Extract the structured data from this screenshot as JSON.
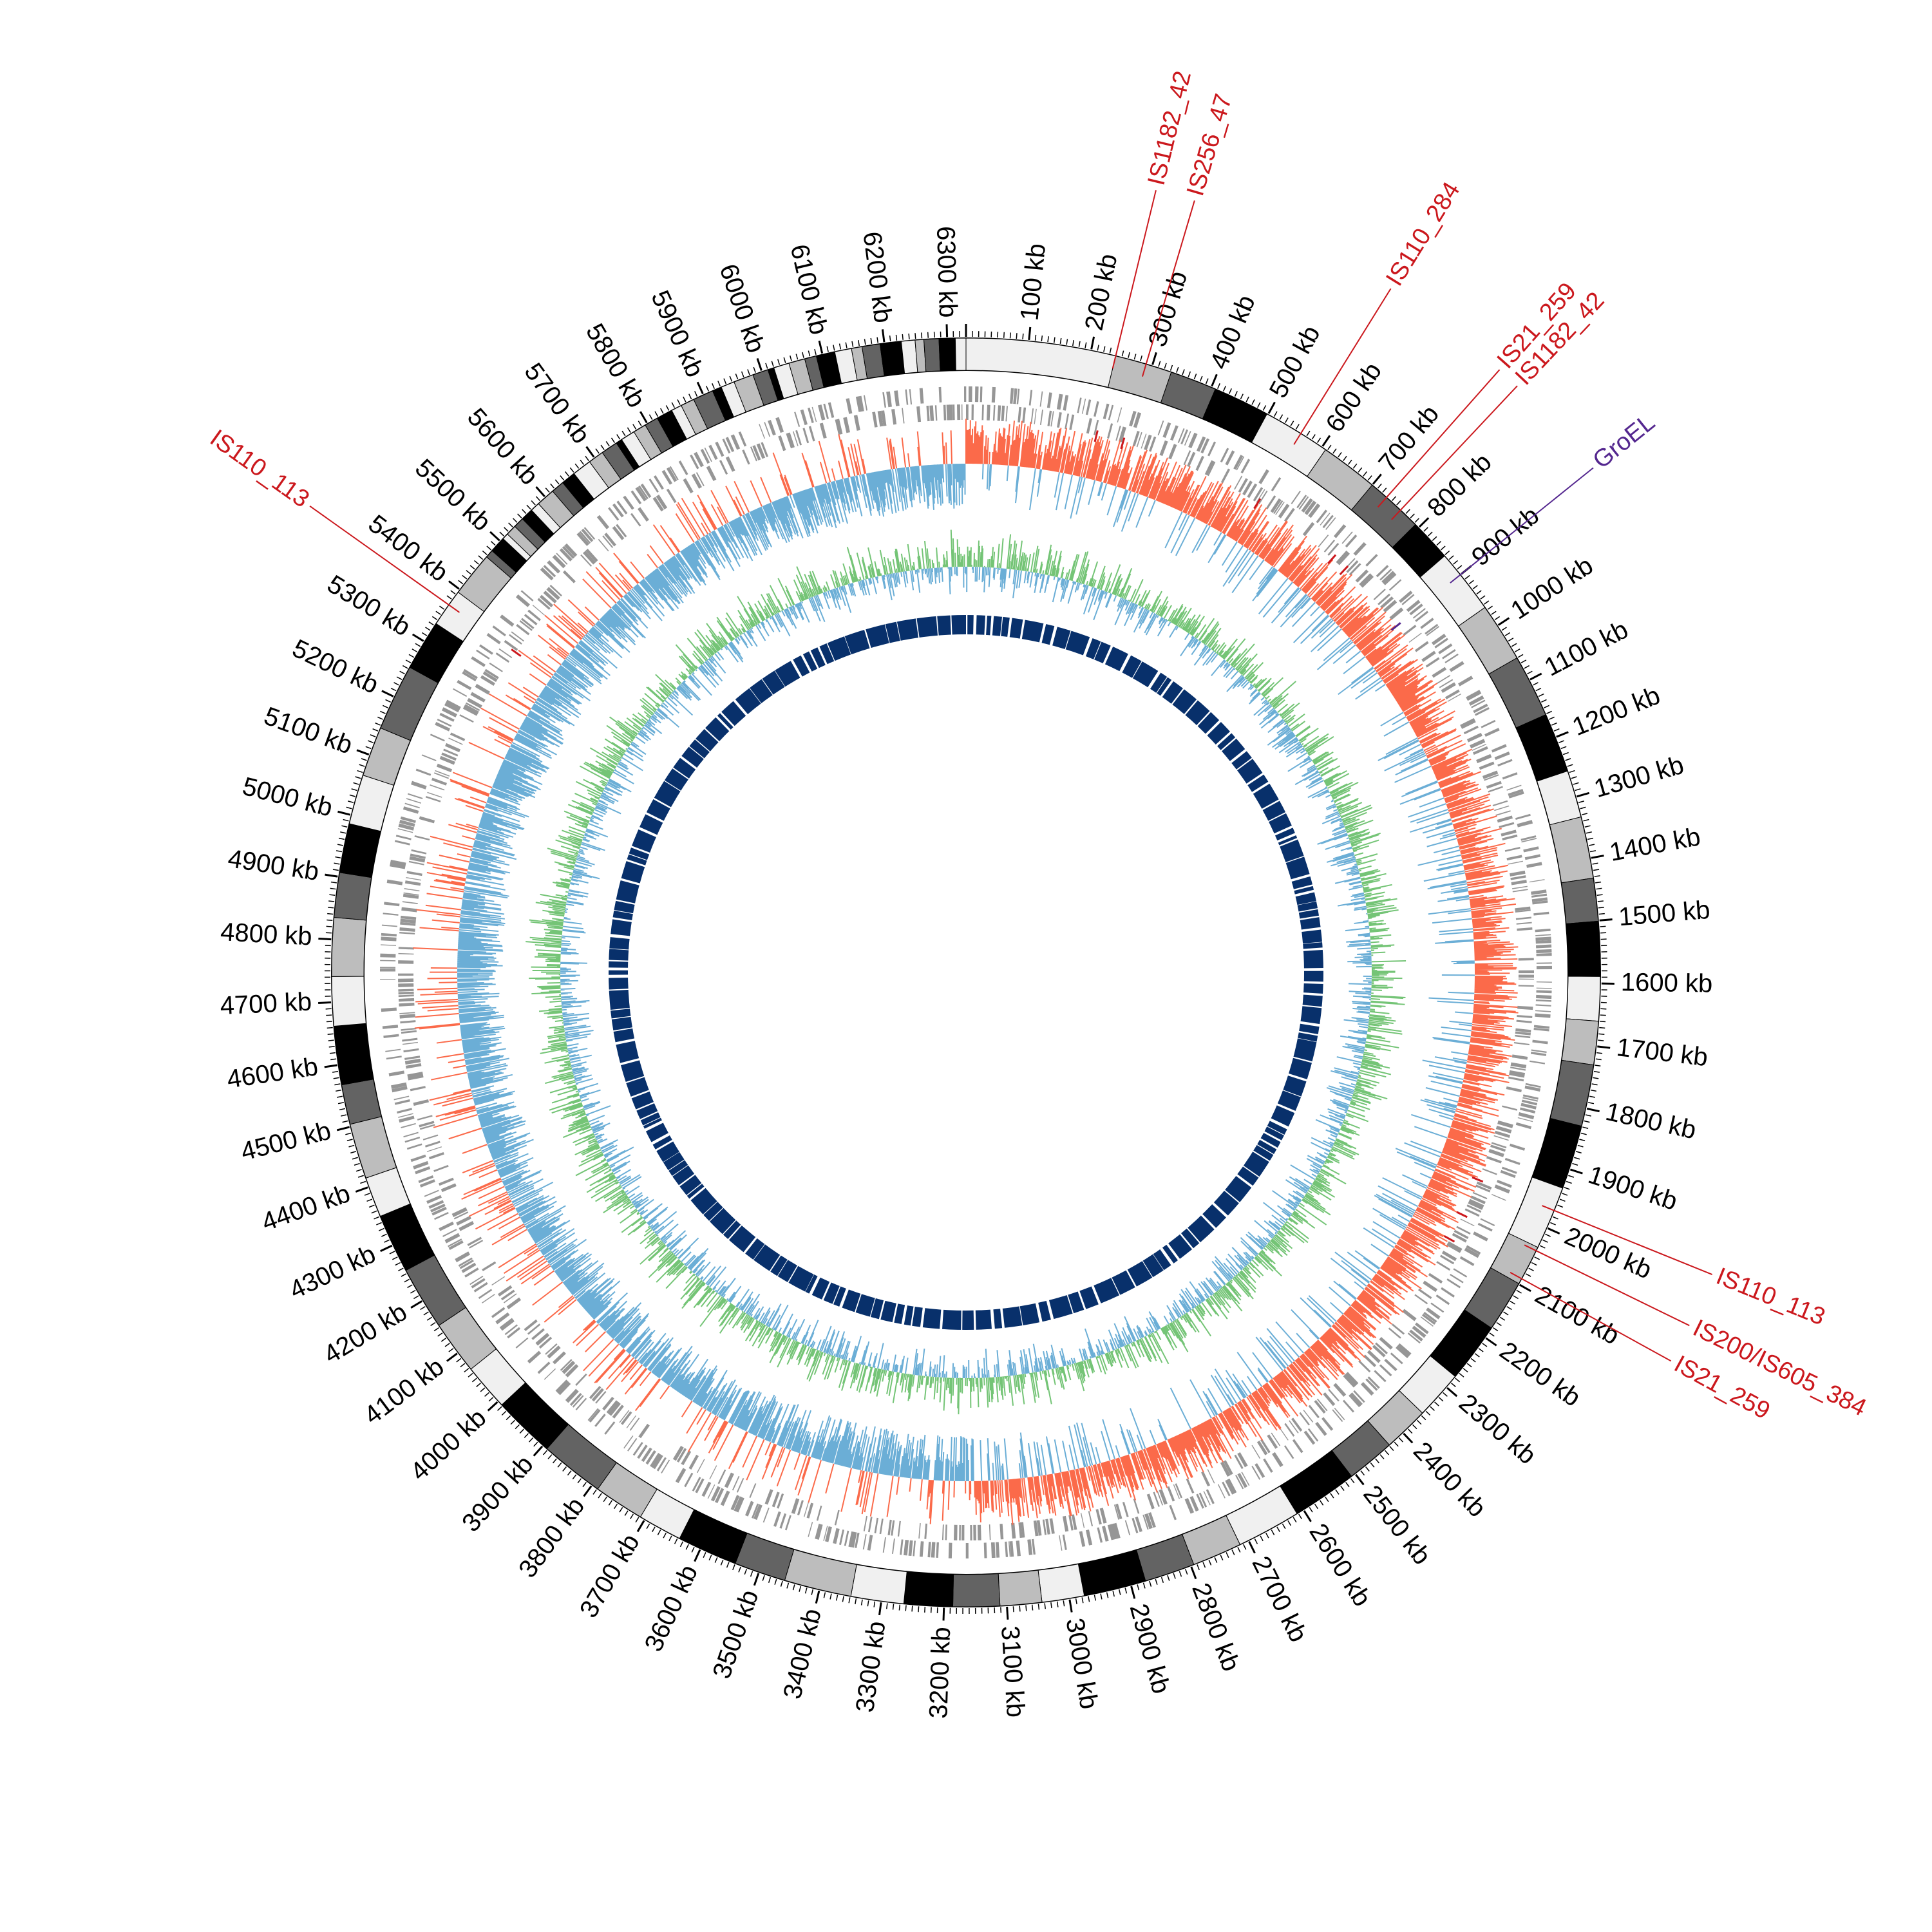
{
  "figure": {
    "genome_length_kb": 6330,
    "tick_unit": "kb",
    "tick_labels": [
      "100 kb",
      "200 kb",
      "300 kb",
      "400 kb",
      "500 kb",
      "600 kb",
      "700 kb",
      "800 kb",
      "900 kb",
      "1000 kb",
      "1100 kb",
      "1200 kb",
      "1300 kb",
      "1400 kb",
      "1500 kb",
      "1600 kb",
      "1700 kb",
      "1800 kb",
      "1900 kb",
      "2000 kb",
      "2100 kb",
      "2200 kb",
      "2300 kb",
      "2400 kb",
      "2500 kb",
      "2600 kb",
      "2700 kb",
      "2800 kb",
      "2900 kb",
      "3000 kb",
      "3100 kb",
      "3200 kb",
      "3300 kb",
      "3400 kb",
      "3500 kb",
      "3600 kb",
      "3700 kb",
      "3800 kb",
      "3900 kb",
      "4000 kb",
      "4100 kb",
      "4200 kb",
      "4300 kb",
      "4400 kb",
      "4500 kb",
      "4600 kb",
      "4700 kb",
      "4800 kb",
      "4900 kb",
      "5000 kb",
      "5100 kb",
      "5200 kb",
      "5300 kb",
      "5400 kb",
      "5500 kb",
      "5600 kb",
      "5700 kb",
      "5800 kb",
      "5900 kb",
      "6000 kb",
      "6100 kb",
      "6200 kb",
      "6300 kb"
    ],
    "ideogram_shades": [
      "#f0f0f0",
      "#bdbdbd",
      "#636363",
      "#000000"
    ],
    "annotations": [
      {
        "label": "IS1182_42",
        "position_kb": 240,
        "color": "#cb181d"
      },
      {
        "label": "IS256_47",
        "position_kb": 290,
        "color": "#cb181d"
      },
      {
        "label": "IS110_284",
        "position_kb": 560,
        "color": "#cb181d"
      },
      {
        "label": "IS21_259",
        "position_kb": 730,
        "color": "#cb181d"
      },
      {
        "label": "IS1182_42",
        "position_kb": 760,
        "color": "#cb181d"
      },
      {
        "label": "GroEL",
        "position_kb": 900,
        "color": "#54278f"
      },
      {
        "label": "IS110_113",
        "position_kb": 1970,
        "color": "#cb181d"
      },
      {
        "label": "IS200/IS605_384",
        "position_kb": 2040,
        "color": "#cb181d"
      },
      {
        "label": "IS21_259",
        "position_kb": 2090,
        "color": "#cb181d"
      },
      {
        "label": "IS110_113",
        "position_kb": 5370,
        "color": "#cb181d"
      }
    ],
    "colors": {
      "gene_track": "#969696",
      "gc_skew_positive": "#fb6a4a",
      "gc_skew_negative": "#6baed6",
      "gc_content": "#74c476",
      "gc_content_low": "#6baed6",
      "inner_ring": "#08306b"
    }
  }
}
